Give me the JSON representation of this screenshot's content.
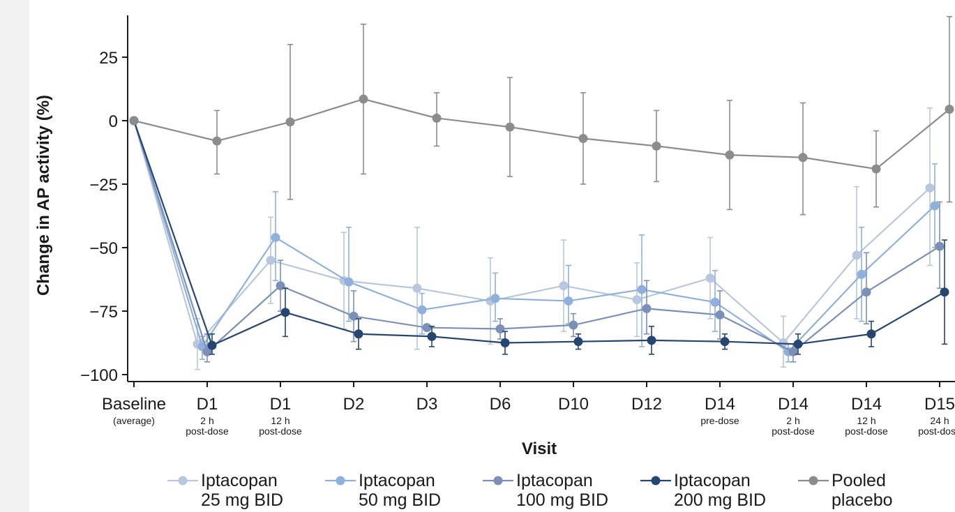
{
  "chart_data": {
    "type": "line",
    "ylabel": "Change in AP activity (%)",
    "xlabel": "Visit",
    "ylim": [
      -103,
      42
    ],
    "yticks": [
      25,
      0,
      -25,
      -50,
      -75,
      -100
    ],
    "ytick_labels": [
      "25",
      "0",
      "−25",
      "−50",
      "−75",
      "−100"
    ],
    "categories": [
      {
        "main": "Baseline",
        "sub": [
          "(average)"
        ]
      },
      {
        "main": "D1",
        "sub": [
          "2 h",
          "post-dose"
        ]
      },
      {
        "main": "D1",
        "sub": [
          "12 h",
          "post-dose"
        ]
      },
      {
        "main": "D2",
        "sub": []
      },
      {
        "main": "D3",
        "sub": []
      },
      {
        "main": "D6",
        "sub": []
      },
      {
        "main": "D10",
        "sub": []
      },
      {
        "main": "D12",
        "sub": []
      },
      {
        "main": "D14",
        "sub": [
          "pre-dose"
        ]
      },
      {
        "main": "D14",
        "sub": [
          "2 h",
          "post-dose"
        ]
      },
      {
        "main": "D14",
        "sub": [
          "12 h",
          "post-dose"
        ]
      },
      {
        "main": "D15",
        "sub": [
          "24 h",
          "post-dose"
        ]
      }
    ],
    "series": [
      {
        "name": "Iptacopan\n25 mg BID",
        "color": "#b8c7de",
        "values": [
          0,
          -88,
          -55,
          -63,
          -66,
          -71,
          -65,
          -70.5,
          -62,
          -87.5,
          -53,
          -26.5
        ],
        "err_low": [
          null,
          -98,
          -72,
          -82,
          -90,
          -88,
          -83,
          -85,
          -78,
          -97,
          -78,
          -57
        ],
        "err_high": [
          null,
          -78,
          -38,
          -44,
          -42,
          -54,
          -47,
          -56,
          -46,
          -77,
          -26,
          5
        ]
      },
      {
        "name": "Iptacopan\n50 mg BID",
        "color": "#8fb0da",
        "values": [
          0,
          -89,
          -46,
          -63.5,
          -74.5,
          -70,
          -71,
          -66.5,
          -71.5,
          -91,
          -60.5,
          -33.5
        ],
        "err_low": [
          null,
          -94,
          -63,
          -79,
          -84,
          -79,
          -80,
          -89,
          -83,
          -95,
          -79,
          -50
        ],
        "err_high": [
          null,
          -85,
          -28,
          -42,
          -68,
          -60,
          -57,
          -45,
          -59,
          -88,
          -42,
          -17
        ]
      },
      {
        "name": "Iptacopan\n100 mg BID",
        "color": "#7c90b7",
        "values": [
          0,
          -91,
          -65,
          -77,
          -81.5,
          -82,
          -80.5,
          -74,
          -76.5,
          -91,
          -67.5,
          -49.5
        ],
        "err_low": [
          null,
          -95,
          -75,
          -87,
          -82,
          -86,
          -85,
          -84,
          -86,
          -95,
          -80,
          -66
        ],
        "err_high": [
          null,
          -84,
          -55,
          -67,
          -81,
          -78,
          -76,
          -63,
          -67,
          -88,
          -52,
          -32
        ]
      },
      {
        "name": "Iptacopan\n200 mg BID",
        "color": "#26456f",
        "values": [
          0,
          -88.5,
          -75.5,
          -84,
          -85,
          -87.5,
          -87,
          -86.5,
          -87,
          -88,
          -84,
          -67.5
        ],
        "err_low": [
          null,
          -92,
          -85,
          -90,
          -89,
          -92,
          -90,
          -92,
          -90,
          -92,
          -89,
          -88
        ],
        "err_high": [
          null,
          -84,
          -66,
          -78,
          -81,
          -83,
          -84,
          -81,
          -84,
          -84,
          -79,
          -47
        ]
      },
      {
        "name": "Pooled\nplacebo",
        "color": "#8c8c8c",
        "values": [
          0,
          -8,
          -0.5,
          8.5,
          1,
          -2.5,
          -7,
          -10,
          -13.5,
          -14.5,
          -19,
          4.5
        ],
        "err_low": [
          null,
          -21,
          -31,
          -21,
          -10,
          -22,
          -25,
          -24,
          -35,
          -37,
          -34,
          -32
        ],
        "err_high": [
          null,
          4,
          30,
          38,
          11,
          17,
          11,
          4,
          8,
          7,
          -4,
          41
        ]
      }
    ]
  }
}
